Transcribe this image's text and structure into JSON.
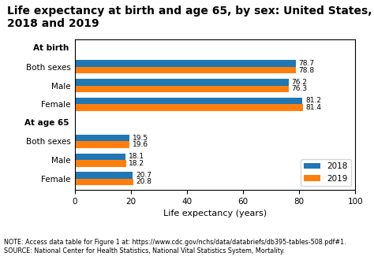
{
  "chart_data": {
    "type": "bar",
    "orientation": "horizontal",
    "title": "Life expectancy at birth and age 65, by sex: United States,\n2018 and 2019",
    "xlabel": "Life expectancy (years)",
    "note": "NOTE: Access data table for Figure 1 at: https://www.cdc.gov/nchs/data/databriefs/db395-tables-508.pdf#1.\nSOURCE: National Center for Health Statistics, National Vital Statistics System, Mortality.",
    "categories": [
      "Both sexes",
      "Male",
      "Female",
      "Both sexes",
      "Male",
      "Female"
    ],
    "sections": [
      "At birth",
      "At birth",
      "At birth",
      "At age 65",
      "At age 65",
      "At age 65"
    ],
    "series": [
      {
        "name": "2018",
        "values": [
          78.7,
          76.2,
          81.2,
          19.5,
          18.1,
          20.7
        ]
      },
      {
        "name": "2019",
        "values": [
          78.8,
          76.3,
          81.4,
          19.6,
          18.2,
          20.8
        ]
      }
    ],
    "xlim": [
      0,
      100
    ],
    "xticks": [
      0,
      20,
      40,
      60,
      80,
      100
    ],
    "data_labels": true,
    "legend": "lower right",
    "grid": false
  }
}
